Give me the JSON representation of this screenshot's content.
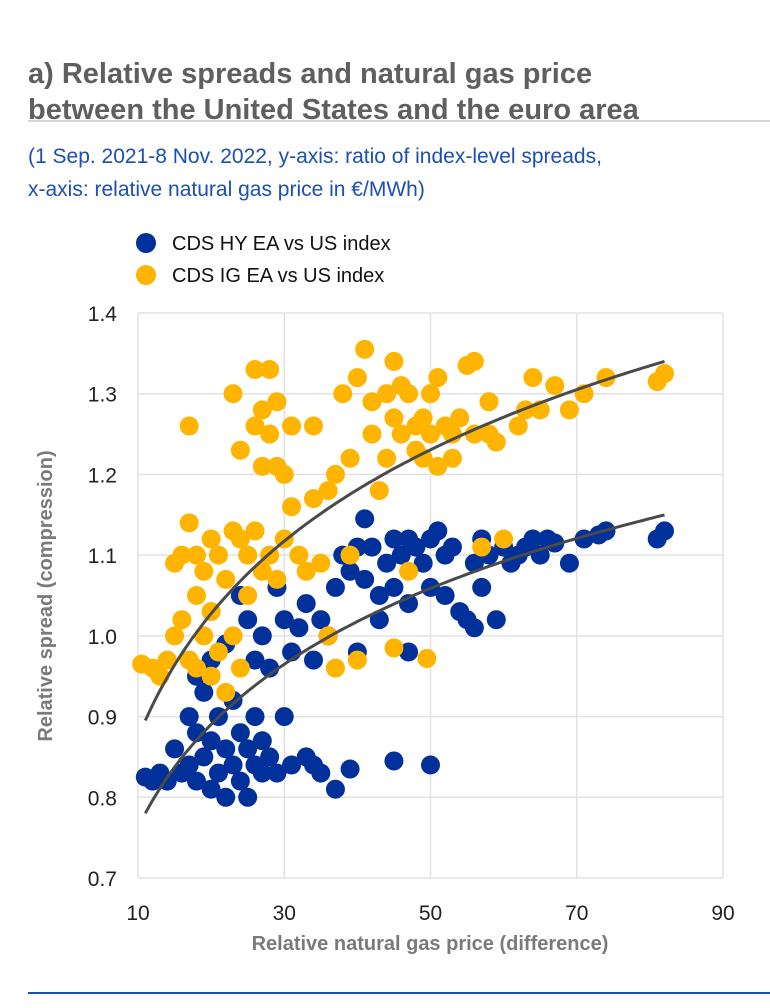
{
  "header": {
    "title_line1": "a) Relative spreads and natural gas price",
    "title_line2": "between the United States and the euro area",
    "subtitle_line1": "(1 Sep. 2021-8 Nov. 2022, y-axis: ratio of index-level spreads,",
    "subtitle_line2": "x-axis: relative natural gas price in €/MWh)"
  },
  "chart_data": {
    "type": "scatter",
    "title": "a) Relative spreads and natural gas price between the United States and the euro area",
    "xlabel": "Relative natural gas price (difference)",
    "ylabel": "Relative spread (compression)",
    "xlim": [
      10,
      90
    ],
    "ylim": [
      0.7,
      1.4
    ],
    "xticks": [
      "10",
      "30",
      "50",
      "70",
      "90"
    ],
    "yticks": [
      "0.7",
      "0.8",
      "0.9",
      "1.0",
      "1.1",
      "1.2",
      "1.3",
      "1.4"
    ],
    "grid": true,
    "legend_position": "top-left",
    "series": [
      {
        "name": "CDS HY EA vs US index",
        "color": "#00309a",
        "trendline": {
          "type": "logarithmic",
          "x_range": [
            11,
            82
          ],
          "a": 0.339,
          "b": 0.184
        },
        "points": [
          [
            11,
            0.825
          ],
          [
            12,
            0.82
          ],
          [
            13,
            0.83
          ],
          [
            14,
            0.82
          ],
          [
            15,
            0.86
          ],
          [
            16,
            0.83
          ],
          [
            17,
            0.84
          ],
          [
            17,
            0.9
          ],
          [
            18,
            0.88
          ],
          [
            18,
            0.82
          ],
          [
            19,
            0.93
          ],
          [
            19,
            0.85
          ],
          [
            20,
            0.81
          ],
          [
            20,
            0.87
          ],
          [
            21,
            0.9
          ],
          [
            21,
            0.83
          ],
          [
            22,
            0.86
          ],
          [
            22,
            0.8
          ],
          [
            23,
            0.84
          ],
          [
            23,
            0.92
          ],
          [
            24,
            0.88
          ],
          [
            24,
            0.82
          ],
          [
            25,
            0.8
          ],
          [
            25,
            0.86
          ],
          [
            26,
            0.9
          ],
          [
            26,
            0.84
          ],
          [
            27,
            0.87
          ],
          [
            27,
            0.83
          ],
          [
            28,
            0.85
          ],
          [
            29,
            0.83
          ],
          [
            30,
            0.9
          ],
          [
            31,
            0.84
          ],
          [
            33,
            0.85
          ],
          [
            34,
            0.84
          ],
          [
            35,
            0.83
          ],
          [
            37,
            0.81
          ],
          [
            39,
            0.835
          ],
          [
            45,
            0.845
          ],
          [
            50,
            0.84
          ],
          [
            18,
            0.95
          ],
          [
            20,
            0.97
          ],
          [
            22,
            0.99
          ],
          [
            24,
            1.05
          ],
          [
            25,
            1.02
          ],
          [
            26,
            0.97
          ],
          [
            27,
            1.0
          ],
          [
            28,
            0.96
          ],
          [
            29,
            1.06
          ],
          [
            30,
            1.02
          ],
          [
            31,
            0.98
          ],
          [
            32,
            1.01
          ],
          [
            33,
            1.04
          ],
          [
            34,
            0.97
          ],
          [
            35,
            1.02
          ],
          [
            36,
            1.0
          ],
          [
            37,
            1.06
          ],
          [
            38,
            1.1
          ],
          [
            39,
            1.08
          ],
          [
            40,
            1.11
          ],
          [
            40,
            0.98
          ],
          [
            41,
            1.145
          ],
          [
            41,
            1.07
          ],
          [
            42,
            1.11
          ],
          [
            43,
            1.05
          ],
          [
            43,
            1.02
          ],
          [
            44,
            1.09
          ],
          [
            45,
            1.12
          ],
          [
            45,
            1.06
          ],
          [
            46,
            1.1
          ],
          [
            47,
            1.12
          ],
          [
            47,
            1.04
          ],
          [
            48,
            1.11
          ],
          [
            49,
            1.09
          ],
          [
            50,
            1.12
          ],
          [
            50,
            1.06
          ],
          [
            51,
            1.13
          ],
          [
            52,
            1.1
          ],
          [
            52,
            1.05
          ],
          [
            53,
            1.11
          ],
          [
            54,
            1.03
          ],
          [
            55,
            1.02
          ],
          [
            56,
            1.01
          ],
          [
            56,
            1.09
          ],
          [
            57,
            1.12
          ],
          [
            57,
            1.06
          ],
          [
            58,
            1.1
          ],
          [
            59,
            1.02
          ],
          [
            60,
            1.11
          ],
          [
            61,
            1.09
          ],
          [
            62,
            1.1
          ],
          [
            63,
            1.11
          ],
          [
            64,
            1.12
          ],
          [
            65,
            1.1
          ],
          [
            66,
            1.12
          ],
          [
            67,
            1.115
          ],
          [
            69,
            1.09
          ],
          [
            71,
            1.12
          ],
          [
            73,
            1.125
          ],
          [
            74,
            1.13
          ],
          [
            81,
            1.12
          ],
          [
            82,
            1.13
          ],
          [
            47,
            0.98
          ]
        ]
      },
      {
        "name": "CDS IG EA vs US index",
        "color": "#ffb400",
        "trendline": {
          "type": "logarithmic",
          "x_range": [
            11,
            82
          ],
          "a": 0.364,
          "b": 0.2215
        },
        "points": [
          [
            10.5,
            0.965
          ],
          [
            12,
            0.96
          ],
          [
            13,
            0.95
          ],
          [
            14,
            0.97
          ],
          [
            15,
            1.09
          ],
          [
            15,
            1.0
          ],
          [
            16,
            1.1
          ],
          [
            16,
            1.02
          ],
          [
            17,
            1.26
          ],
          [
            17,
            1.14
          ],
          [
            17,
            0.97
          ],
          [
            18,
            1.1
          ],
          [
            18,
            1.05
          ],
          [
            18,
            0.96
          ],
          [
            19,
            1.08
          ],
          [
            19,
            1.0
          ],
          [
            20,
            1.12
          ],
          [
            20,
            1.03
          ],
          [
            20,
            0.95
          ],
          [
            21,
            1.1
          ],
          [
            21,
            0.98
          ],
          [
            22,
            1.07
          ],
          [
            22,
            0.93
          ],
          [
            23,
            1.3
          ],
          [
            23,
            1.13
          ],
          [
            23,
            1.0
          ],
          [
            24,
            1.23
          ],
          [
            24,
            1.12
          ],
          [
            24,
            0.96
          ],
          [
            25,
            1.1
          ],
          [
            25,
            1.05
          ],
          [
            26,
            1.33
          ],
          [
            26,
            1.26
          ],
          [
            26,
            1.13
          ],
          [
            27,
            1.28
          ],
          [
            27,
            1.21
          ],
          [
            27,
            1.08
          ],
          [
            28,
            1.33
          ],
          [
            28,
            1.25
          ],
          [
            28,
            1.1
          ],
          [
            29,
            1.29
          ],
          [
            29,
            1.21
          ],
          [
            29,
            1.07
          ],
          [
            30,
            1.2
          ],
          [
            30,
            1.12
          ],
          [
            31,
            1.26
          ],
          [
            31,
            1.16
          ],
          [
            32,
            1.1
          ],
          [
            33,
            1.08
          ],
          [
            34,
            1.17
          ],
          [
            34,
            1.26
          ],
          [
            35,
            1.09
          ],
          [
            36,
            1.18
          ],
          [
            36,
            1.0
          ],
          [
            37,
            1.2
          ],
          [
            37,
            0.96
          ],
          [
            38,
            1.3
          ],
          [
            39,
            1.22
          ],
          [
            39,
            1.1
          ],
          [
            40,
            1.32
          ],
          [
            40,
            0.97
          ],
          [
            41,
            1.355
          ],
          [
            42,
            1.29
          ],
          [
            42,
            1.25
          ],
          [
            43,
            1.18
          ],
          [
            44,
            1.22
          ],
          [
            44,
            1.3
          ],
          [
            45,
            1.34
          ],
          [
            45,
            1.27
          ],
          [
            46,
            1.25
          ],
          [
            46,
            1.31
          ],
          [
            47,
            1.3
          ],
          [
            47,
            1.08
          ],
          [
            48,
            1.23
          ],
          [
            48,
            1.26
          ],
          [
            49,
            1.27
          ],
          [
            49,
            1.22
          ],
          [
            50,
            1.3
          ],
          [
            50,
            1.25
          ],
          [
            51,
            1.32
          ],
          [
            51,
            1.21
          ],
          [
            52,
            1.26
          ],
          [
            53,
            1.25
          ],
          [
            53,
            1.22
          ],
          [
            54,
            1.27
          ],
          [
            55,
            1.335
          ],
          [
            56,
            1.34
          ],
          [
            56,
            1.25
          ],
          [
            57,
            1.11
          ],
          [
            58,
            1.25
          ],
          [
            58,
            1.29
          ],
          [
            59,
            1.24
          ],
          [
            60,
            1.12
          ],
          [
            62,
            1.26
          ],
          [
            63,
            1.28
          ],
          [
            64,
            1.32
          ],
          [
            65,
            1.28
          ],
          [
            67,
            1.31
          ],
          [
            69,
            1.28
          ],
          [
            71,
            1.3
          ],
          [
            74,
            1.32
          ],
          [
            81,
            1.315
          ],
          [
            82,
            1.325
          ],
          [
            45,
            0.985
          ],
          [
            49.5,
            0.972
          ]
        ]
      }
    ]
  }
}
